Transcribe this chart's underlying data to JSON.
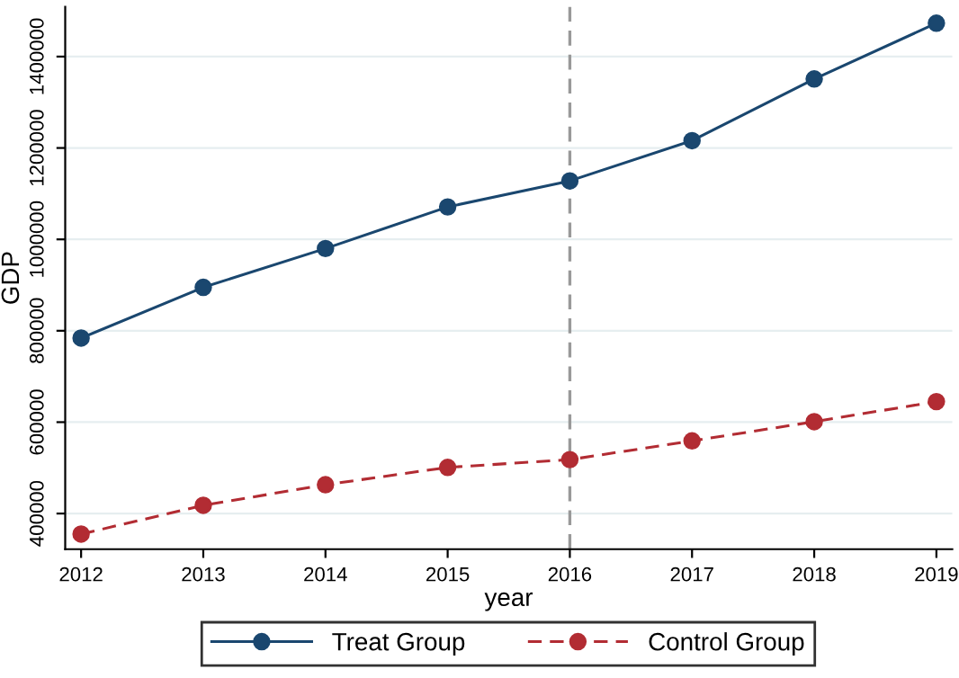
{
  "chart_data": {
    "type": "line",
    "xlabel": "year",
    "ylabel": "GDP",
    "x": [
      2012,
      2013,
      2014,
      2015,
      2016,
      2017,
      2018,
      2019
    ],
    "series": [
      {
        "name": "Treat Group",
        "color": "#1a476f",
        "line_style": "solid",
        "values": [
          784000,
          895000,
          980000,
          1071000,
          1128000,
          1216000,
          1351000,
          1473000
        ]
      },
      {
        "name": "Control Group",
        "color": "#b22c33",
        "line_style": "dashed",
        "values": [
          355000,
          418000,
          463000,
          501000,
          518000,
          559000,
          601000,
          645000
        ]
      }
    ],
    "xlim": [
      2011.87,
      2019.13
    ],
    "xticks": [
      2012,
      2013,
      2014,
      2015,
      2016,
      2017,
      2018,
      2019
    ],
    "ylim": [
      322000,
      1509000
    ],
    "yticks": [
      400000,
      600000,
      800000,
      1000000,
      1200000,
      1400000
    ],
    "ref_lines": [
      {
        "axis": "x",
        "value": 2016,
        "color": "#999999",
        "line_style": "dashed"
      }
    ],
    "grid": "y",
    "legend": "bottom",
    "marker": "circle"
  }
}
